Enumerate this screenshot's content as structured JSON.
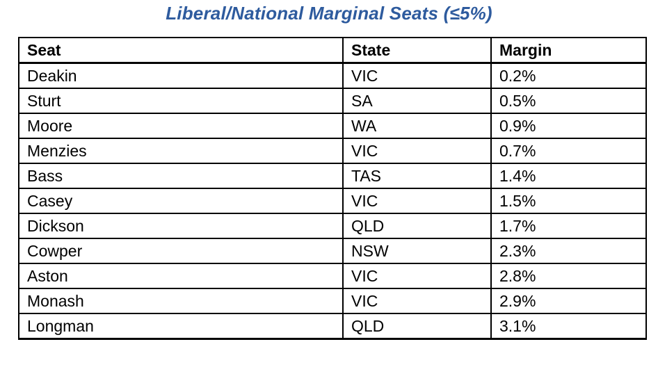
{
  "chart_data": {
    "type": "table",
    "title": "Liberal/National Marginal Seats (≤5%)",
    "title_color": "#2E5B9E",
    "columns": [
      "Seat",
      "State",
      "Margin"
    ],
    "rows": [
      [
        "Deakin",
        "VIC",
        "0.2%"
      ],
      [
        "Sturt",
        "SA",
        "0.5%"
      ],
      [
        "Moore",
        "WA",
        "0.9%"
      ],
      [
        "Menzies",
        "VIC",
        "0.7%"
      ],
      [
        "Bass",
        "TAS",
        "1.4%"
      ],
      [
        "Casey",
        "VIC",
        "1.5%"
      ],
      [
        "Dickson",
        "QLD",
        "1.7%"
      ],
      [
        "Cowper",
        "NSW",
        "2.3%"
      ],
      [
        "Aston",
        "VIC",
        "2.8%"
      ],
      [
        "Monash",
        "VIC",
        "2.9%"
      ],
      [
        "Longman",
        "QLD",
        "3.1%"
      ]
    ],
    "margin_values_percent": [
      0.2,
      0.5,
      0.9,
      0.7,
      1.4,
      1.5,
      1.7,
      2.3,
      2.8,
      2.9,
      3.1
    ],
    "layout": {
      "border_color": "#000000",
      "background": "#ffffff",
      "grid": "full table borders"
    }
  }
}
